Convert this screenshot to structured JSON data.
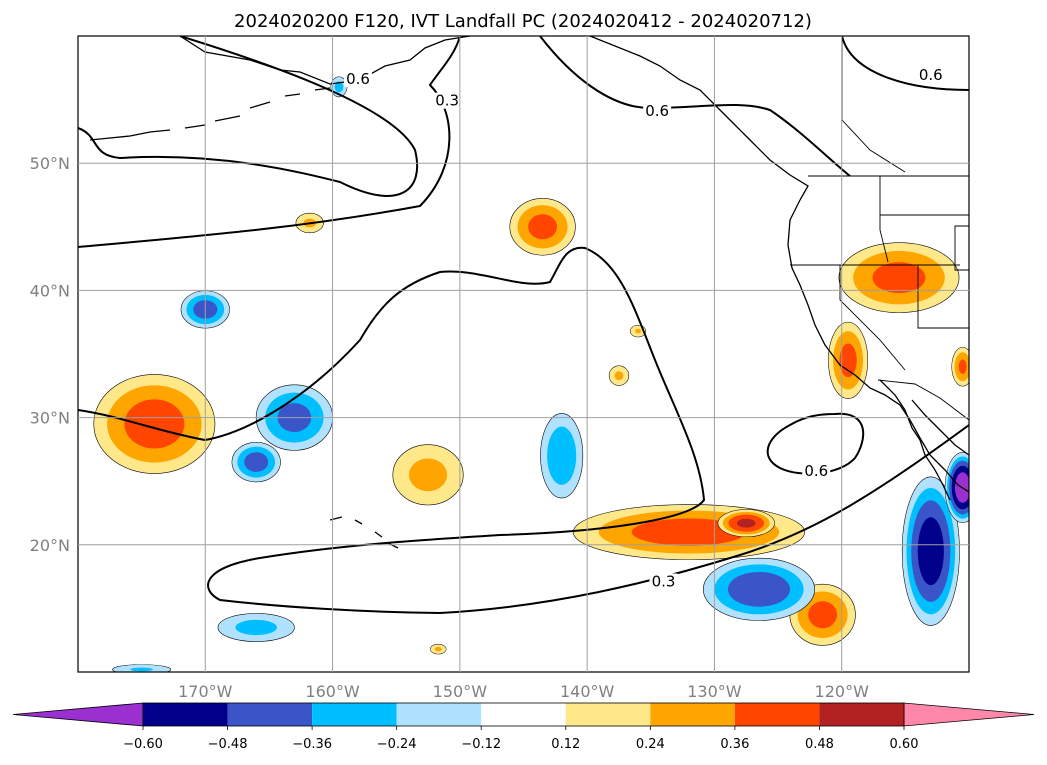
{
  "title": "2024020200 F120, IVT Landfall PC (2024020412 - 2024020712)",
  "map": {
    "lon_range": [
      -180,
      -110
    ],
    "lat_range": [
      10,
      60
    ],
    "lon_ticks": [
      {
        "value": -170,
        "label": "170°W"
      },
      {
        "value": -160,
        "label": "160°W"
      },
      {
        "value": -150,
        "label": "150°W"
      },
      {
        "value": -140,
        "label": "140°W"
      },
      {
        "value": -130,
        "label": "130°W"
      },
      {
        "value": -120,
        "label": "120°W"
      }
    ],
    "lat_ticks": [
      {
        "value": 20,
        "label": "20°N"
      },
      {
        "value": 30,
        "label": "30°N"
      },
      {
        "value": 40,
        "label": "40°N"
      },
      {
        "value": 50,
        "label": "50°N"
      }
    ],
    "grid": true,
    "contour_labels": [
      {
        "text": "0.6",
        "lon": -158.0,
        "lat": 56.3
      },
      {
        "text": "0.3",
        "lon": -151.0,
        "lat": 54.6
      },
      {
        "text": "0.6",
        "lon": -134.5,
        "lat": 53.8
      },
      {
        "text": "0.6",
        "lon": -113.0,
        "lat": 56.6
      },
      {
        "text": "0.6",
        "lon": -122.0,
        "lat": 25.5
      },
      {
        "text": "0.3",
        "lon": -134.0,
        "lat": 16.8
      }
    ]
  },
  "colorbar": {
    "ticks": [
      "−0.60",
      "−0.48",
      "−0.36",
      "−0.24",
      "−0.12",
      "0.12",
      "0.24",
      "0.36",
      "0.48",
      "0.60"
    ],
    "colors": [
      "#9b30d0",
      "#00008b",
      "#3a55c8",
      "#00bfff",
      "#b0e2ff",
      "#ffffff",
      "#ffe88a",
      "#ffa500",
      "#ff4500",
      "#b22222",
      "#ff88aa"
    ],
    "extend": "both"
  },
  "chart_data": {
    "type": "heatmap",
    "variable": "IVT Landfall PC",
    "levels": [
      -0.6,
      -0.48,
      -0.36,
      -0.24,
      -0.12,
      0.12,
      0.24,
      0.36,
      0.48,
      0.6
    ],
    "features": [
      {
        "sign": "positive",
        "center": [
          -143.5,
          45.0
        ],
        "radius": [
          3.0,
          2.6
        ],
        "peak": 0.4
      },
      {
        "sign": "positive",
        "center": [
          -161.8,
          45.3
        ],
        "radius": [
          1.4,
          1.0
        ],
        "peak": 0.26
      },
      {
        "sign": "positive",
        "center": [
          -174.0,
          29.5
        ],
        "radius": [
          5.5,
          4.5
        ],
        "peak": 0.42
      },
      {
        "sign": "positive",
        "center": [
          -152.5,
          25.5
        ],
        "radius": [
          3.5,
          3.0
        ],
        "peak": 0.28
      },
      {
        "sign": "positive",
        "center": [
          -137.5,
          33.3
        ],
        "radius": [
          1.0,
          1.0
        ],
        "peak": 0.26
      },
      {
        "sign": "positive",
        "center": [
          -136.0,
          36.8
        ],
        "radius": [
          0.8,
          0.6
        ],
        "peak": 0.25
      },
      {
        "sign": "positive",
        "center": [
          -132.0,
          21.0
        ],
        "radius": [
          10.5,
          2.5
        ],
        "peak": 0.42
      },
      {
        "sign": "positive",
        "center": [
          -127.5,
          21.7
        ],
        "radius": [
          2.5,
          1.2
        ],
        "peak": 0.5
      },
      {
        "sign": "positive",
        "center": [
          -121.5,
          14.5
        ],
        "radius": [
          3.0,
          2.8
        ],
        "peak": 0.4
      },
      {
        "sign": "positive",
        "center": [
          -115.5,
          41.0
        ],
        "radius": [
          5.5,
          3.2
        ],
        "peak": 0.4
      },
      {
        "sign": "positive",
        "center": [
          -119.5,
          34.5
        ],
        "radius": [
          1.8,
          3.5
        ],
        "peak": 0.4
      },
      {
        "sign": "positive",
        "center": [
          -110.5,
          34.0
        ],
        "radius": [
          1.0,
          1.8
        ],
        "peak": 0.38
      },
      {
        "sign": "positive",
        "center": [
          -151.7,
          11.8
        ],
        "radius": [
          0.8,
          0.5
        ],
        "peak": 0.26
      },
      {
        "sign": "negative",
        "center": [
          -170.0,
          38.5
        ],
        "radius": [
          2.2,
          1.7
        ],
        "peak": -0.42
      },
      {
        "sign": "negative",
        "center": [
          -163.0,
          30.0
        ],
        "radius": [
          3.5,
          3.0
        ],
        "peak": -0.4
      },
      {
        "sign": "negative",
        "center": [
          -166.0,
          26.5
        ],
        "radius": [
          2.2,
          1.8
        ],
        "peak": -0.42
      },
      {
        "sign": "negative",
        "center": [
          -142.0,
          27.0
        ],
        "radius": [
          2.0,
          4.0
        ],
        "peak": -0.34
      },
      {
        "sign": "negative",
        "center": [
          -159.5,
          56.0
        ],
        "radius": [
          0.8,
          1.0
        ],
        "peak": -0.28
      },
      {
        "sign": "negative",
        "center": [
          -126.5,
          16.5
        ],
        "radius": [
          5.0,
          2.8
        ],
        "peak": -0.45
      },
      {
        "sign": "negative",
        "center": [
          -166.0,
          13.5
        ],
        "radius": [
          3.8,
          1.4
        ],
        "peak": -0.28
      },
      {
        "sign": "negative",
        "center": [
          -113.0,
          19.5
        ],
        "radius": [
          2.5,
          6.5
        ],
        "peak": -0.55
      },
      {
        "sign": "negative",
        "center": [
          -110.5,
          24.5
        ],
        "radius": [
          1.5,
          3.0
        ],
        "peak": -0.68
      },
      {
        "sign": "negative",
        "center": [
          -175.0,
          10.2
        ],
        "radius": [
          3.0,
          0.5
        ],
        "peak": -0.25
      }
    ]
  }
}
